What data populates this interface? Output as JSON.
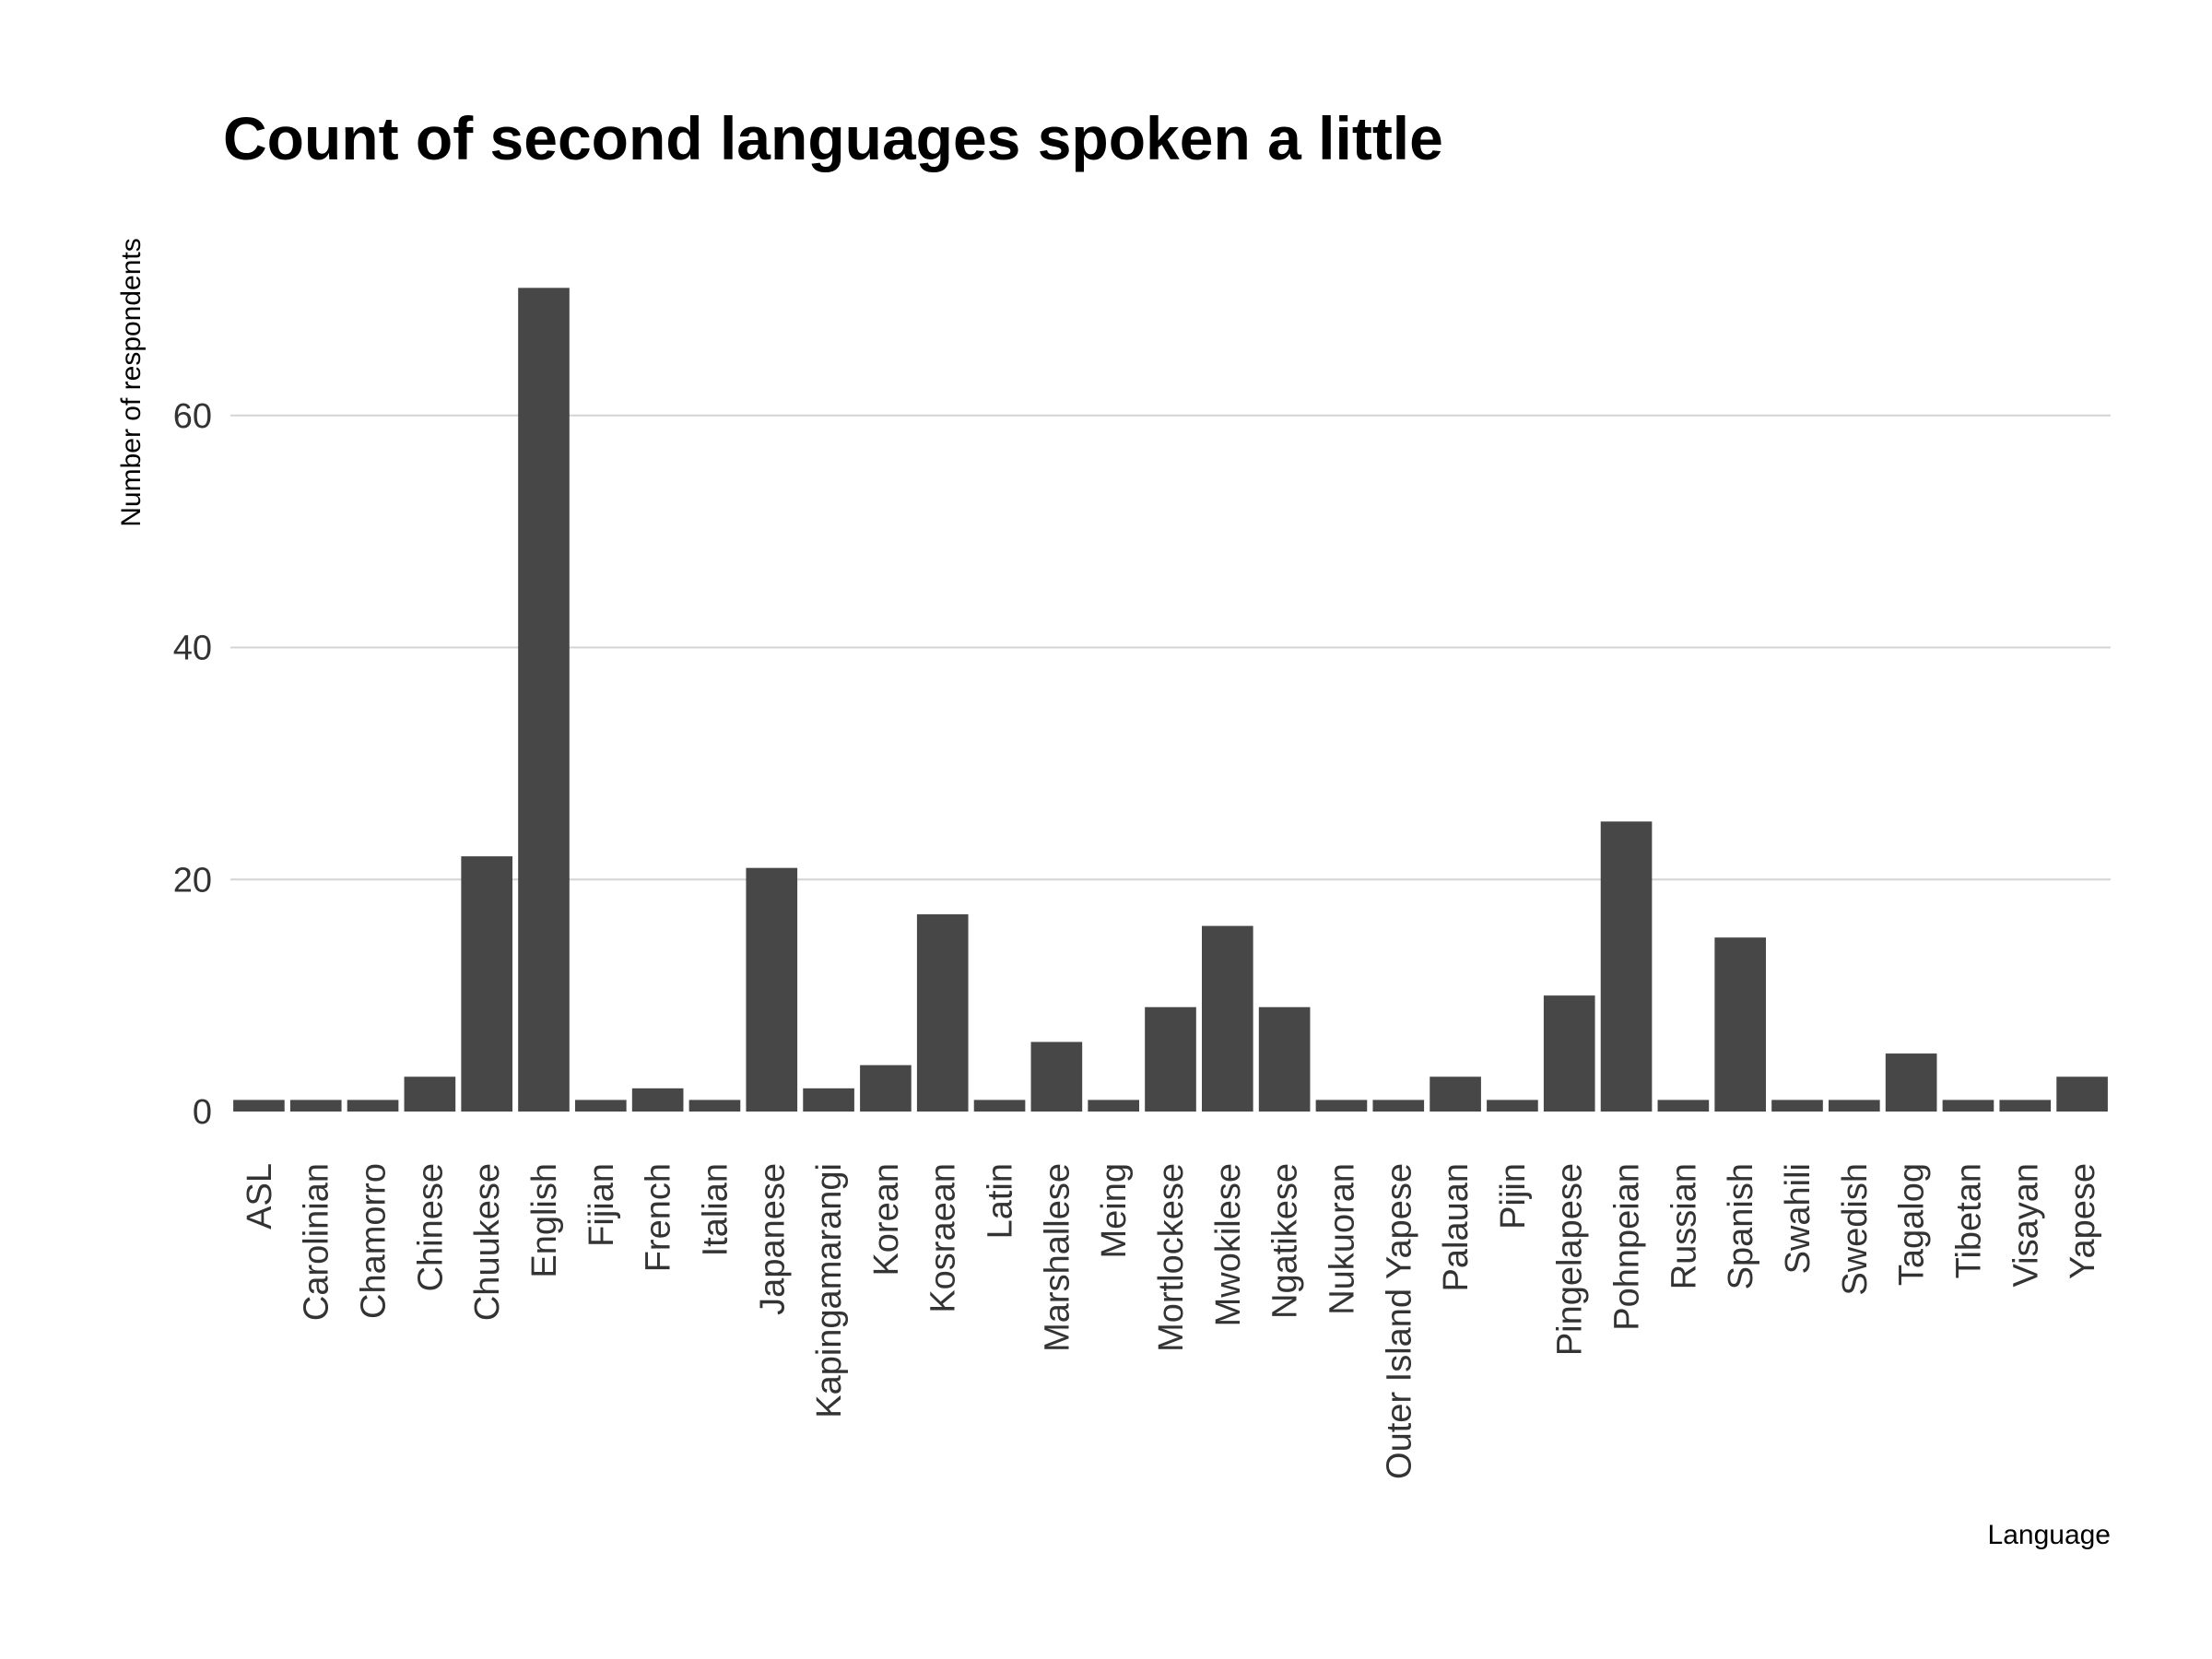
{
  "chart_data": {
    "type": "bar",
    "title": "Count of second languages spoken a little",
    "xlabel": "Language",
    "ylabel": "Number of respondents",
    "ylim": [
      0,
      75
    ],
    "yticks": [
      0,
      20,
      40,
      60
    ],
    "grid": "horizontal",
    "bar_color": "#474747",
    "grid_color": "#d4d4d4",
    "categories": [
      "ASL",
      "Carolinian",
      "Chamorro",
      "Chinese",
      "Chuukese",
      "English",
      "Fijian",
      "French",
      "Italian",
      "Japanese",
      "Kapingamarangi",
      "Korean",
      "Kosraean",
      "Latin",
      "Marshallese",
      "Meing",
      "Mortlockese",
      "Mwokilese",
      "Ngatikese",
      "Nukuoran",
      "Outer Island Yapese",
      "Palauan",
      "Pijin",
      "Pingelapese",
      "Pohnpeian",
      "Russian",
      "Spanish",
      "Swahili",
      "Swedish",
      "Tagalog",
      "Tibetan",
      "Visayan",
      "Yapese"
    ],
    "values": [
      1,
      1,
      1,
      3,
      22,
      71,
      1,
      2,
      1,
      21,
      2,
      4,
      17,
      1,
      6,
      1,
      9,
      16,
      9,
      1,
      1,
      3,
      1,
      10,
      25,
      1,
      15,
      1,
      1,
      5,
      1,
      1,
      3
    ]
  }
}
